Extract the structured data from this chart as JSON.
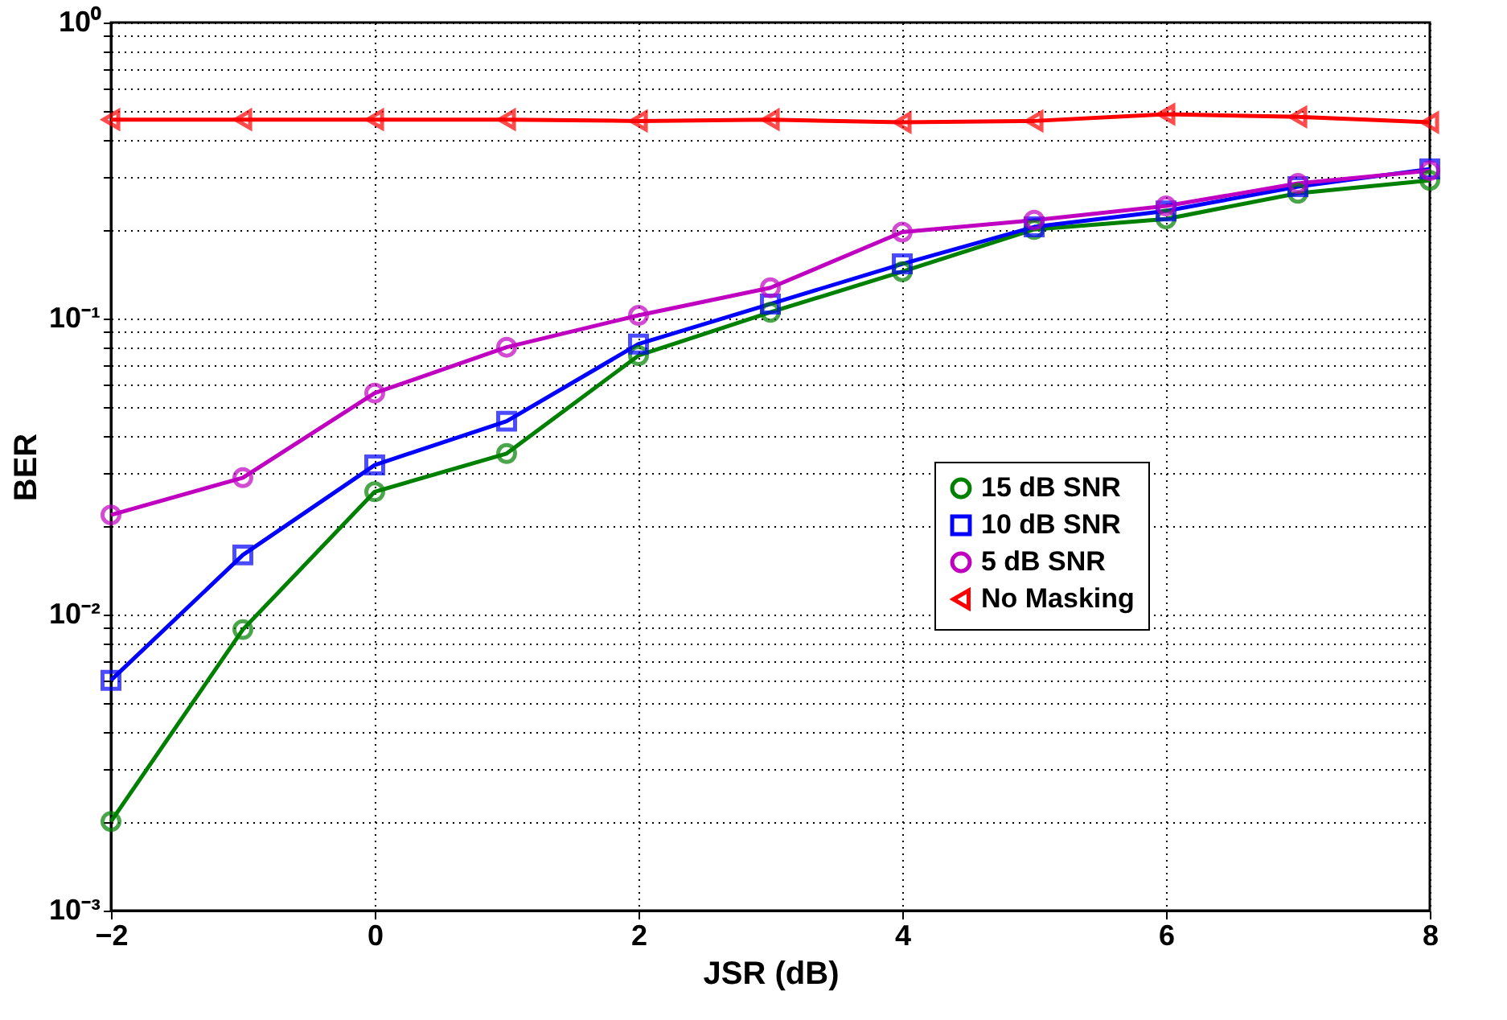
{
  "chart_data": {
    "type": "line",
    "xlabel": "JSR (dB)",
    "ylabel": "BER",
    "x": [
      -2,
      -1,
      0,
      1,
      2,
      3,
      4,
      5,
      6,
      7,
      8
    ],
    "series": [
      {
        "name": "15 dB SNR",
        "color": "#008000",
        "marker": "circle",
        "values": [
          0.002,
          0.0089,
          0.026,
          0.035,
          0.075,
          0.105,
          0.144,
          0.2,
          0.217,
          0.265,
          0.293
        ]
      },
      {
        "name": "10 dB SNR",
        "color": "#0000ff",
        "marker": "square",
        "values": [
          0.006,
          0.0159,
          0.032,
          0.045,
          0.082,
          0.112,
          0.153,
          0.204,
          0.231,
          0.279,
          0.32
        ]
      },
      {
        "name": "5  dB SNR",
        "color": "#c000c0",
        "marker": "circle",
        "values": [
          0.0217,
          0.029,
          0.056,
          0.08,
          0.1025,
          0.127,
          0.196,
          0.215,
          0.24,
          0.286,
          0.316
        ]
      },
      {
        "name": "No Masking",
        "color": "#ff0000",
        "marker": "triangle",
        "values": [
          0.47,
          0.47,
          0.47,
          0.47,
          0.465,
          0.47,
          0.46,
          0.465,
          0.49,
          0.48,
          0.46
        ]
      }
    ],
    "xlim": [
      -2,
      8
    ],
    "xticks": [
      {
        "value": -2,
        "label": "−2"
      },
      0,
      2,
      4,
      6,
      8
    ],
    "ylim": [
      0.001,
      1
    ],
    "log": "y",
    "yticks": [
      {
        "value": 0.001,
        "label": "10⁻³"
      },
      {
        "value": 0.002,
        "label": null
      },
      {
        "value": 0.003,
        "label": null
      },
      {
        "value": 0.004,
        "label": null
      },
      {
        "value": 0.005,
        "label": null
      },
      {
        "value": 0.006,
        "label": null
      },
      {
        "value": 0.007,
        "label": null
      },
      {
        "value": 0.008,
        "label": null
      },
      {
        "value": 0.009,
        "label": null
      },
      {
        "value": 0.01,
        "label": "10⁻²"
      },
      {
        "value": 0.02,
        "label": null
      },
      {
        "value": 0.03,
        "label": null
      },
      {
        "value": 0.04,
        "label": null
      },
      {
        "value": 0.05,
        "label": null
      },
      {
        "value": 0.06,
        "label": null
      },
      {
        "value": 0.07,
        "label": null
      },
      {
        "value": 0.08,
        "label": null
      },
      {
        "value": 0.09,
        "label": null
      },
      {
        "value": 0.1,
        "label": "10⁻¹"
      },
      {
        "value": 0.2,
        "label": null
      },
      {
        "value": 0.3,
        "label": null
      },
      {
        "value": 0.4,
        "label": null
      },
      {
        "value": 0.5,
        "label": null
      },
      {
        "value": 0.6,
        "label": null
      },
      {
        "value": 0.7,
        "label": null
      },
      {
        "value": 0.8,
        "label": null
      },
      {
        "value": 0.9,
        "label": null
      },
      {
        "value": 1,
        "label": "10⁰"
      }
    ],
    "grid": true,
    "legend": "bottom right",
    "line_style": "solid"
  }
}
